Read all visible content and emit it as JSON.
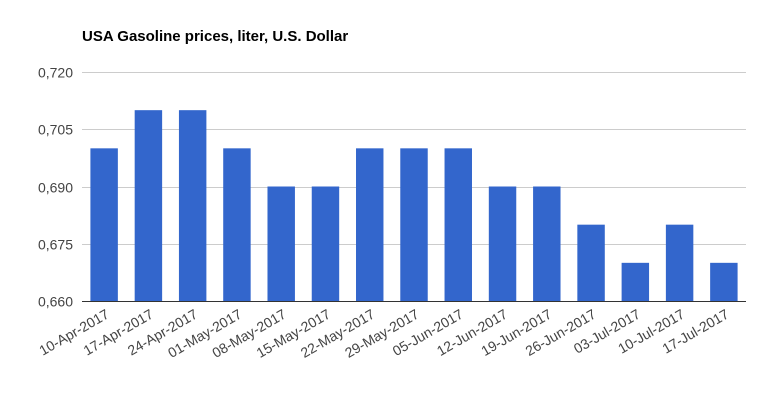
{
  "chart_data": {
    "type": "bar",
    "title": "USA Gasoline prices, liter, U.S. Dollar",
    "xlabel": "",
    "ylabel": "",
    "categories": [
      "10-Apr-2017",
      "17-Apr-2017",
      "24-Apr-2017",
      "01-May-2017",
      "08-May-2017",
      "15-May-2017",
      "22-May-2017",
      "29-May-2017",
      "05-Jun-2017",
      "12-Jun-2017",
      "19-Jun-2017",
      "26-Jun-2017",
      "03-Jul-2017",
      "10-Jul-2017",
      "17-Jul-2017"
    ],
    "values": [
      0.7,
      0.71,
      0.71,
      0.7,
      0.69,
      0.69,
      0.7,
      0.7,
      0.7,
      0.69,
      0.69,
      0.68,
      0.67,
      0.68,
      0.67
    ],
    "ylim": [
      0.66,
      0.72
    ],
    "yticks": [
      "0,720",
      "0,705",
      "0,690",
      "0,675",
      "0,660"
    ],
    "ytick_values": [
      0.72,
      0.705,
      0.69,
      0.675,
      0.66
    ],
    "grid": true,
    "legend": "none",
    "colors": {
      "bar": "#3366cc",
      "grid": "#cccccc",
      "baseline": "#333333",
      "tick_text": "#444444",
      "title": "#000000"
    }
  }
}
